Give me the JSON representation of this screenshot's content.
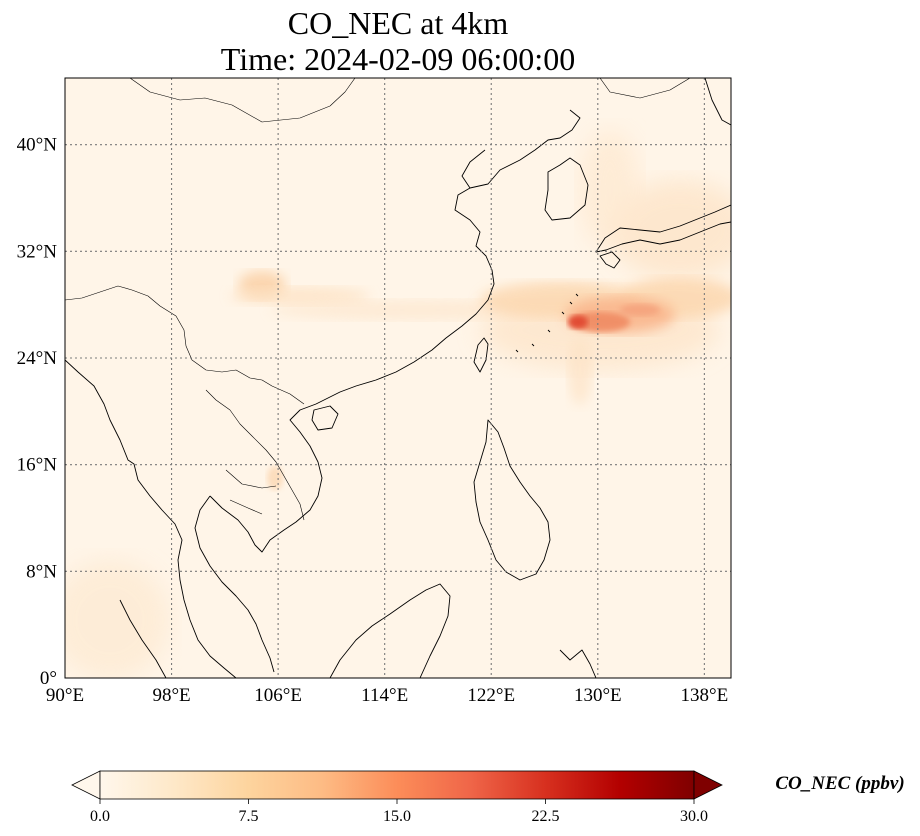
{
  "title": {
    "line1": "CO_NEC at 4km",
    "line2": "Time: 2024-02-09 06:00:00"
  },
  "map": {
    "lon_range": [
      90,
      140
    ],
    "lat_range": [
      0,
      45
    ],
    "lon_ticks": [
      "90°E",
      "98°E",
      "106°E",
      "114°E",
      "122°E",
      "130°E",
      "138°E"
    ],
    "lat_ticks": [
      "0°",
      "8°N",
      "16°N",
      "24°N",
      "32°N",
      "40°N"
    ],
    "gridlines": true,
    "background_color": "#fff5e8",
    "plume_high_color": "#e0452f"
  },
  "colorbar": {
    "label": "CO_NEC (ppbv)",
    "ticks": [
      "0.0",
      "7.5",
      "15.0",
      "22.5",
      "30.0"
    ],
    "range": [
      0,
      30
    ],
    "colormap": "OrRd",
    "colors": [
      "#fff7ec",
      "#fee8c8",
      "#fdd49e",
      "#fdbb84",
      "#fc8d59",
      "#ef6548",
      "#d7301f",
      "#b30000",
      "#7f0000"
    ],
    "extend": "both"
  }
}
